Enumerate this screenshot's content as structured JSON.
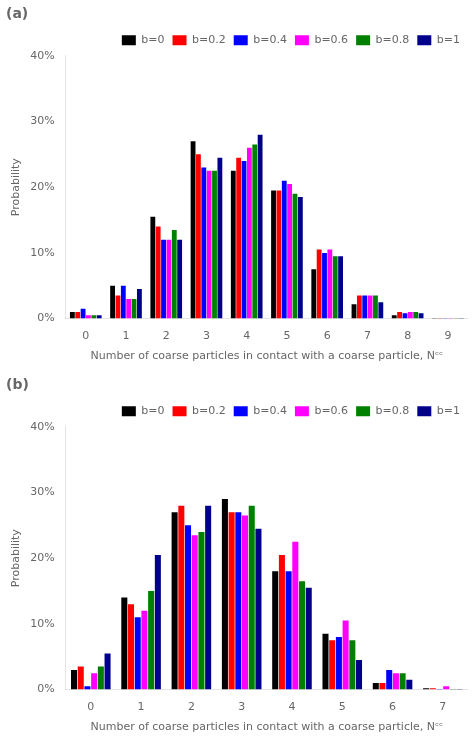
{
  "chart_data": [
    {
      "type": "bar",
      "title": "(a)",
      "xlabel": "Number of coarse particles in contact with a coarse particle, Nᶜᶜ",
      "ylabel": "Probability",
      "categories": [
        0,
        1,
        2,
        3,
        4,
        5,
        6,
        7,
        8,
        9
      ],
      "series": [
        {
          "name": "b=0",
          "color": "#000000",
          "values": [
            1.0,
            5.0,
            15.5,
            27.0,
            22.5,
            19.5,
            7.5,
            2.2,
            0.5,
            0.1
          ]
        },
        {
          "name": "b=0.2",
          "color": "#ff0000",
          "values": [
            1.0,
            3.5,
            14.0,
            25.0,
            24.5,
            19.5,
            10.5,
            3.5,
            1.0,
            0.1
          ]
        },
        {
          "name": "b=0.4",
          "color": "#0000ff",
          "values": [
            1.5,
            5.0,
            12.0,
            23.0,
            24.0,
            21.0,
            10.0,
            3.5,
            0.8,
            0.1
          ]
        },
        {
          "name": "b=0.6",
          "color": "#ff00ff",
          "values": [
            0.5,
            3.0,
            12.0,
            22.5,
            26.0,
            20.5,
            10.5,
            3.5,
            1.0,
            0.1
          ]
        },
        {
          "name": "b=0.8",
          "color": "#008000",
          "values": [
            0.5,
            3.0,
            13.5,
            22.5,
            26.5,
            19.0,
            9.5,
            3.5,
            1.0,
            0.1
          ]
        },
        {
          "name": "b=1",
          "color": "#00008b",
          "values": [
            0.5,
            4.5,
            12.0,
            24.5,
            28.0,
            18.5,
            9.5,
            2.5,
            0.8,
            0.1
          ]
        }
      ],
      "ylim": [
        0,
        40
      ],
      "yticks": [
        {
          "value": 0,
          "label": "0%"
        },
        {
          "value": 10,
          "label": "10%"
        },
        {
          "value": 20,
          "label": "20%"
        },
        {
          "value": 30,
          "label": "30%"
        },
        {
          "value": 40,
          "label": "40%"
        }
      ],
      "grid": false,
      "legend": "upper right"
    },
    {
      "type": "bar",
      "title": "(b)",
      "xlabel": "Number of coarse particles in contact with a coarse particle, Nᶜᶜ",
      "ylabel": "Probability",
      "categories": [
        0,
        1,
        2,
        3,
        4,
        5,
        6,
        7
      ],
      "series": [
        {
          "name": "b=0",
          "color": "#000000",
          "values": [
            3.0,
            14.0,
            27.0,
            29.0,
            18.0,
            8.5,
            1.0,
            0.2
          ]
        },
        {
          "name": "b=0.2",
          "color": "#ff0000",
          "values": [
            3.5,
            13.0,
            28.0,
            27.0,
            20.5,
            7.5,
            1.0,
            0.2
          ]
        },
        {
          "name": "b=0.4",
          "color": "#0000ff",
          "values": [
            0.5,
            11.0,
            25.0,
            27.0,
            18.0,
            8.0,
            3.0,
            0.1
          ]
        },
        {
          "name": "b=0.6",
          "color": "#ff00ff",
          "values": [
            2.5,
            12.0,
            23.5,
            26.5,
            22.5,
            10.5,
            2.5,
            0.5
          ]
        },
        {
          "name": "b=0.8",
          "color": "#008000",
          "values": [
            3.5,
            15.0,
            24.0,
            28.0,
            16.5,
            7.5,
            2.5,
            0.1
          ]
        },
        {
          "name": "b=1",
          "color": "#00008b",
          "values": [
            5.5,
            20.5,
            28.0,
            24.5,
            15.5,
            4.5,
            1.5,
            0.1
          ]
        }
      ],
      "ylim": [
        0,
        40
      ],
      "yticks": [
        {
          "value": 0,
          "label": "0%"
        },
        {
          "value": 10,
          "label": "10%"
        },
        {
          "value": 20,
          "label": "20%"
        },
        {
          "value": 30,
          "label": "30%"
        },
        {
          "value": 40,
          "label": "40%"
        }
      ],
      "grid": false,
      "legend": "upper right"
    }
  ]
}
